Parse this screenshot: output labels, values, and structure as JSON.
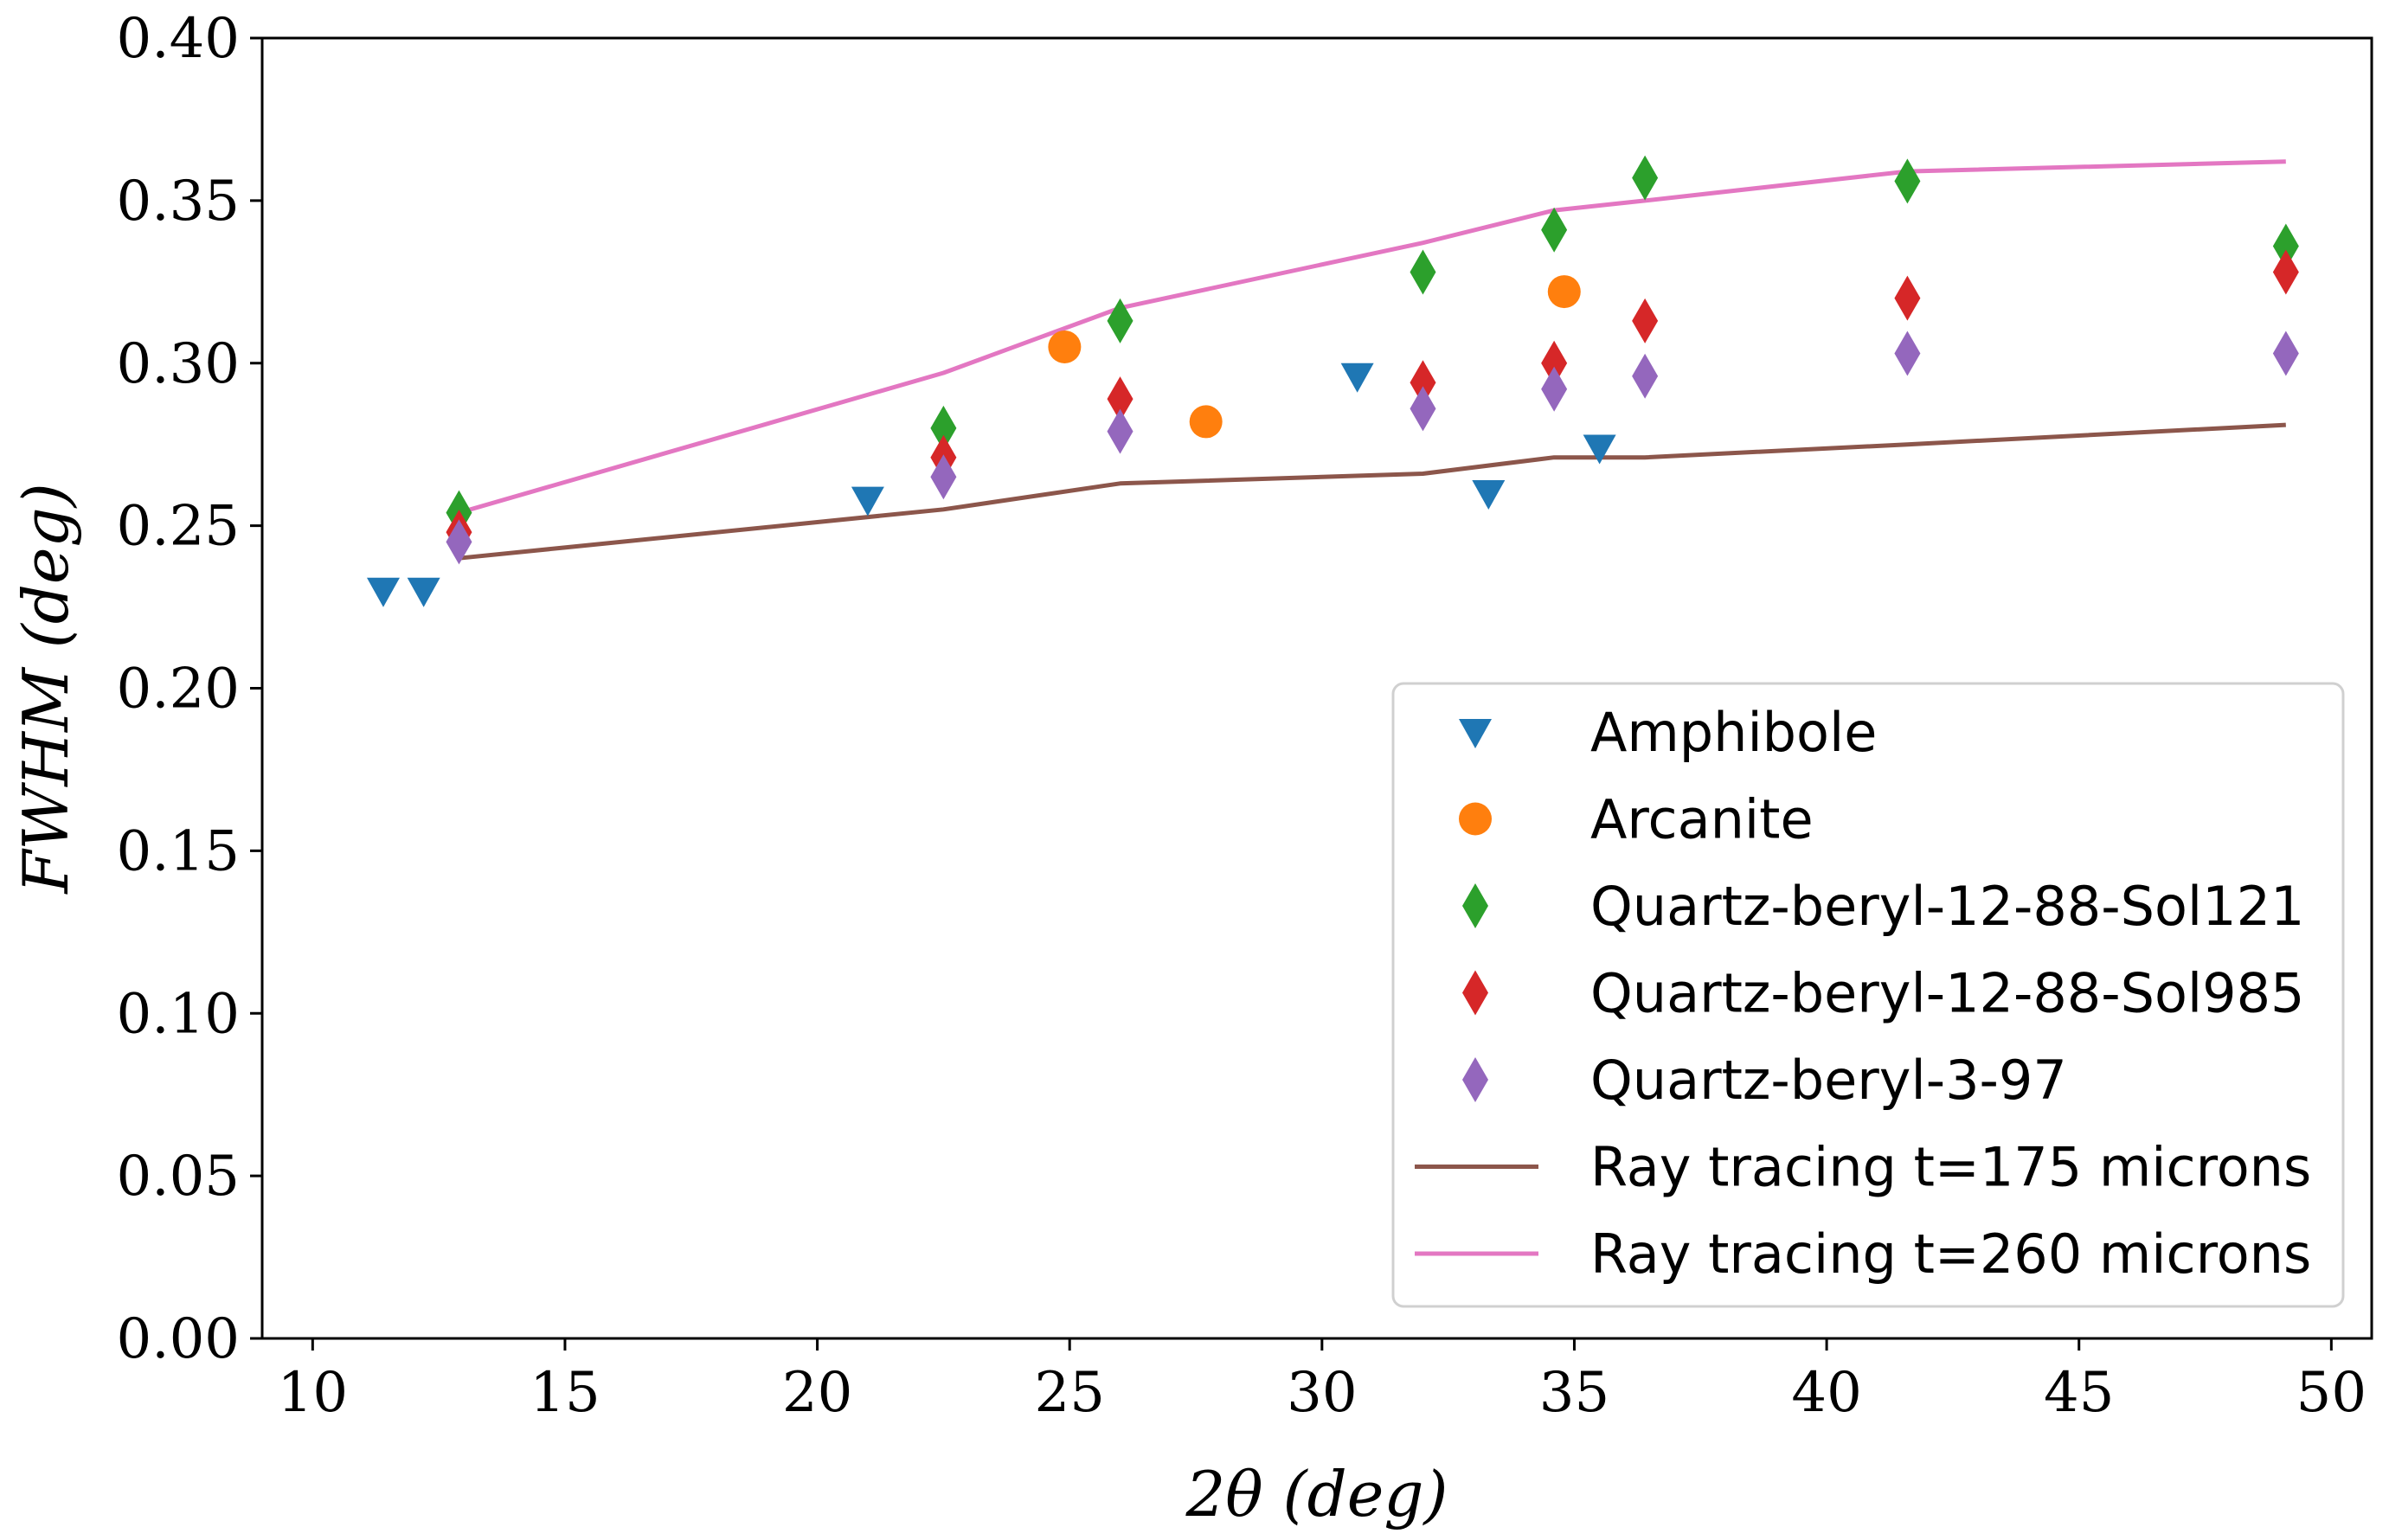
{
  "chart_data": {
    "type": "scatter",
    "title": "",
    "xlabel": "2θ (deg)",
    "ylabel": "FWHM (deg)",
    "xlim": [
      9,
      50.8
    ],
    "ylim": [
      0.0,
      0.4
    ],
    "xticks": [
      10,
      15,
      20,
      25,
      30,
      35,
      40,
      45,
      50
    ],
    "xtick_labels": [
      "10",
      "15",
      "20",
      "25",
      "30",
      "35",
      "40",
      "45",
      "50"
    ],
    "yticks": [
      0.0,
      0.05,
      0.1,
      0.15,
      0.2,
      0.25,
      0.3,
      0.35,
      0.4
    ],
    "ytick_labels": [
      "0.00",
      "0.05",
      "0.10",
      "0.15",
      "0.20",
      "0.25",
      "0.30",
      "0.35",
      "0.40"
    ],
    "legend_position": "lower-right",
    "grid": false,
    "series": [
      {
        "name": "Amphibole",
        "kind": "marker",
        "marker": "triangle-down",
        "color": "#1f77b4",
        "x": [
          11.4,
          12.2,
          21.0,
          30.7,
          33.3,
          35.5
        ],
        "y": [
          0.23,
          0.23,
          0.258,
          0.296,
          0.26,
          0.274
        ]
      },
      {
        "name": "Arcanite",
        "kind": "marker",
        "marker": "circle",
        "color": "#ff7f0e",
        "x": [
          24.9,
          27.7,
          34.8
        ],
        "y": [
          0.305,
          0.282,
          0.322
        ]
      },
      {
        "name": "Quartz-beryl-12-88-Sol121",
        "kind": "marker",
        "marker": "diamond",
        "color": "#2ca02c",
        "x": [
          12.9,
          22.5,
          26.0,
          32.0,
          34.6,
          36.4,
          41.6,
          49.1
        ],
        "y": [
          0.254,
          0.28,
          0.313,
          0.328,
          0.341,
          0.357,
          0.356,
          0.336
        ]
      },
      {
        "name": "Quartz-beryl-12-88-Sol985",
        "kind": "marker",
        "marker": "diamond",
        "color": "#d62728",
        "x": [
          12.9,
          22.5,
          26.0,
          32.0,
          34.6,
          36.4,
          41.6,
          49.1
        ],
        "y": [
          0.248,
          0.271,
          0.289,
          0.294,
          0.3,
          0.313,
          0.32,
          0.328
        ]
      },
      {
        "name": "Quartz-beryl-3-97",
        "kind": "marker",
        "marker": "diamond",
        "color": "#9467bd",
        "x": [
          12.9,
          22.5,
          26.0,
          32.0,
          34.6,
          36.4,
          41.6,
          49.1
        ],
        "y": [
          0.245,
          0.265,
          0.279,
          0.286,
          0.292,
          0.296,
          0.303,
          0.303
        ]
      },
      {
        "name": "Ray tracing t=175 microns",
        "kind": "line",
        "color": "#8c564b",
        "x": [
          12.9,
          22.5,
          26.0,
          32.0,
          34.6,
          36.4,
          41.6,
          49.1
        ],
        "y": [
          0.24,
          0.255,
          0.263,
          0.266,
          0.271,
          0.271,
          0.275,
          0.281
        ]
      },
      {
        "name": "Ray tracing t=260 microns",
        "kind": "line",
        "color": "#e377c2",
        "x": [
          12.9,
          22.5,
          26.0,
          32.0,
          34.6,
          36.4,
          41.6,
          49.1
        ],
        "y": [
          0.254,
          0.297,
          0.317,
          0.337,
          0.347,
          0.35,
          0.359,
          0.362
        ]
      }
    ]
  }
}
